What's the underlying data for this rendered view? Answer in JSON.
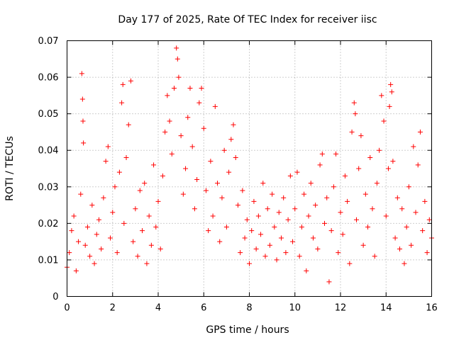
{
  "chart_data": {
    "type": "scatter",
    "title": "Day 177 of 2025, Rate Of TEC Index for receiver iisc",
    "xlabel": "GPS time / hours",
    "ylabel": "ROTI / TECUs",
    "xlim": [
      0,
      16
    ],
    "ylim": [
      0,
      0.07
    ],
    "x_ticks": [
      0,
      2,
      4,
      6,
      8,
      10,
      12,
      14,
      16
    ],
    "x_tick_labels": [
      "0",
      "2",
      "4",
      "6",
      "8",
      "10",
      "12",
      "14",
      "16"
    ],
    "y_ticks": [
      0,
      0.01,
      0.02,
      0.03,
      0.04,
      0.05,
      0.06,
      0.07
    ],
    "y_tick_labels": [
      "0",
      "0.01",
      "0.02",
      "0.03",
      "0.04",
      "0.05",
      "0.06",
      "0.07"
    ],
    "grid": true,
    "marker": "+",
    "marker_color": "#ff0000",
    "series": [
      {
        "name": "ROTI",
        "points": [
          [
            0.0,
            0.008
          ],
          [
            0.1,
            0.012
          ],
          [
            0.2,
            0.018
          ],
          [
            0.3,
            0.022
          ],
          [
            0.4,
            0.007
          ],
          [
            0.5,
            0.015
          ],
          [
            0.6,
            0.028
          ],
          [
            0.65,
            0.061
          ],
          [
            0.68,
            0.054
          ],
          [
            0.7,
            0.048
          ],
          [
            0.72,
            0.042
          ],
          [
            0.8,
            0.014
          ],
          [
            0.9,
            0.019
          ],
          [
            1.0,
            0.011
          ],
          [
            1.1,
            0.025
          ],
          [
            1.2,
            0.009
          ],
          [
            1.3,
            0.017
          ],
          [
            1.4,
            0.021
          ],
          [
            1.5,
            0.013
          ],
          [
            1.6,
            0.027
          ],
          [
            1.7,
            0.037
          ],
          [
            1.8,
            0.041
          ],
          [
            1.9,
            0.016
          ],
          [
            2.0,
            0.023
          ],
          [
            2.1,
            0.03
          ],
          [
            2.2,
            0.012
          ],
          [
            2.3,
            0.034
          ],
          [
            2.4,
            0.053
          ],
          [
            2.45,
            0.058
          ],
          [
            2.5,
            0.02
          ],
          [
            2.6,
            0.038
          ],
          [
            2.7,
            0.047
          ],
          [
            2.8,
            0.059
          ],
          [
            2.9,
            0.015
          ],
          [
            3.0,
            0.024
          ],
          [
            3.1,
            0.011
          ],
          [
            3.2,
            0.029
          ],
          [
            3.3,
            0.018
          ],
          [
            3.4,
            0.031
          ],
          [
            3.5,
            0.009
          ],
          [
            3.6,
            0.022
          ],
          [
            3.7,
            0.014
          ],
          [
            3.8,
            0.036
          ],
          [
            3.9,
            0.019
          ],
          [
            4.0,
            0.026
          ],
          [
            4.1,
            0.013
          ],
          [
            4.2,
            0.033
          ],
          [
            4.3,
            0.045
          ],
          [
            4.4,
            0.055
          ],
          [
            4.5,
            0.048
          ],
          [
            4.6,
            0.039
          ],
          [
            4.7,
            0.057
          ],
          [
            4.8,
            0.068
          ],
          [
            4.85,
            0.065
          ],
          [
            4.9,
            0.06
          ],
          [
            5.0,
            0.044
          ],
          [
            5.1,
            0.028
          ],
          [
            5.2,
            0.035
          ],
          [
            5.3,
            0.049
          ],
          [
            5.4,
            0.057
          ],
          [
            5.5,
            0.041
          ],
          [
            5.6,
            0.024
          ],
          [
            5.7,
            0.032
          ],
          [
            5.8,
            0.053
          ],
          [
            5.9,
            0.057
          ],
          [
            6.0,
            0.046
          ],
          [
            6.1,
            0.029
          ],
          [
            6.2,
            0.018
          ],
          [
            6.3,
            0.037
          ],
          [
            6.4,
            0.022
          ],
          [
            6.5,
            0.052
          ],
          [
            6.6,
            0.031
          ],
          [
            6.7,
            0.015
          ],
          [
            6.8,
            0.027
          ],
          [
            6.9,
            0.04
          ],
          [
            7.0,
            0.019
          ],
          [
            7.1,
            0.034
          ],
          [
            7.2,
            0.043
          ],
          [
            7.3,
            0.047
          ],
          [
            7.4,
            0.038
          ],
          [
            7.5,
            0.025
          ],
          [
            7.6,
            0.012
          ],
          [
            7.7,
            0.029
          ],
          [
            7.8,
            0.016
          ],
          [
            7.9,
            0.021
          ],
          [
            8.0,
            0.009
          ],
          [
            8.1,
            0.018
          ],
          [
            8.2,
            0.026
          ],
          [
            8.3,
            0.013
          ],
          [
            8.4,
            0.022
          ],
          [
            8.5,
            0.017
          ],
          [
            8.6,
            0.031
          ],
          [
            8.7,
            0.011
          ],
          [
            8.8,
            0.024
          ],
          [
            8.9,
            0.014
          ],
          [
            9.0,
            0.028
          ],
          [
            9.1,
            0.019
          ],
          [
            9.2,
            0.01
          ],
          [
            9.3,
            0.023
          ],
          [
            9.4,
            0.016
          ],
          [
            9.5,
            0.027
          ],
          [
            9.6,
            0.012
          ],
          [
            9.7,
            0.021
          ],
          [
            9.8,
            0.033
          ],
          [
            9.9,
            0.015
          ],
          [
            10.0,
            0.024
          ],
          [
            10.1,
            0.034
          ],
          [
            10.2,
            0.011
          ],
          [
            10.3,
            0.019
          ],
          [
            10.4,
            0.028
          ],
          [
            10.5,
            0.007
          ],
          [
            10.6,
            0.022
          ],
          [
            10.7,
            0.031
          ],
          [
            10.8,
            0.016
          ],
          [
            10.9,
            0.025
          ],
          [
            11.0,
            0.013
          ],
          [
            11.1,
            0.036
          ],
          [
            11.2,
            0.039
          ],
          [
            11.3,
            0.02
          ],
          [
            11.4,
            0.027
          ],
          [
            11.5,
            0.004
          ],
          [
            11.6,
            0.018
          ],
          [
            11.7,
            0.03
          ],
          [
            11.8,
            0.039
          ],
          [
            11.9,
            0.012
          ],
          [
            12.0,
            0.023
          ],
          [
            12.1,
            0.017
          ],
          [
            12.2,
            0.033
          ],
          [
            12.3,
            0.026
          ],
          [
            12.4,
            0.009
          ],
          [
            12.5,
            0.045
          ],
          [
            12.6,
            0.053
          ],
          [
            12.65,
            0.05
          ],
          [
            12.7,
            0.021
          ],
          [
            12.8,
            0.035
          ],
          [
            12.9,
            0.044
          ],
          [
            13.0,
            0.014
          ],
          [
            13.1,
            0.028
          ],
          [
            13.2,
            0.019
          ],
          [
            13.3,
            0.038
          ],
          [
            13.4,
            0.024
          ],
          [
            13.5,
            0.011
          ],
          [
            13.6,
            0.031
          ],
          [
            13.7,
            0.04
          ],
          [
            13.8,
            0.055
          ],
          [
            13.9,
            0.048
          ],
          [
            14.0,
            0.022
          ],
          [
            14.1,
            0.035
          ],
          [
            14.15,
            0.052
          ],
          [
            14.2,
            0.058
          ],
          [
            14.25,
            0.056
          ],
          [
            14.3,
            0.037
          ],
          [
            14.4,
            0.016
          ],
          [
            14.5,
            0.027
          ],
          [
            14.6,
            0.013
          ],
          [
            14.7,
            0.024
          ],
          [
            14.8,
            0.009
          ],
          [
            14.9,
            0.019
          ],
          [
            15.0,
            0.03
          ],
          [
            15.1,
            0.014
          ],
          [
            15.2,
            0.041
          ],
          [
            15.3,
            0.023
          ],
          [
            15.4,
            0.036
          ],
          [
            15.5,
            0.045
          ],
          [
            15.6,
            0.018
          ],
          [
            15.7,
            0.026
          ],
          [
            15.8,
            0.012
          ],
          [
            15.9,
            0.021
          ],
          [
            16.0,
            0.016
          ]
        ]
      }
    ]
  }
}
